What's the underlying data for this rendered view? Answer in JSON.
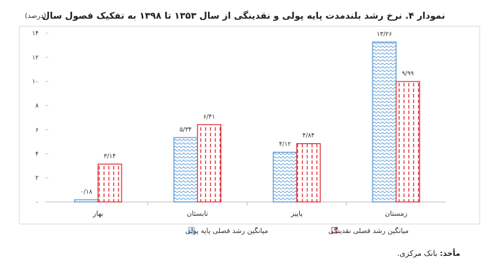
{
  "chart_data": {
    "type": "bar",
    "title": "نمودار ۴. نرخ رشد بلندمدت پایه پولی و نقدینگی از سال ۱۳۵۳ تا ۱۳۹۸ به تفکیک فصول سال",
    "unit_label": "(درصد)",
    "categories": [
      "بهار",
      "تابستان",
      "پاییز",
      "زمستان"
    ],
    "ylim": [
      0,
      14
    ],
    "yticks": [
      0,
      2,
      4,
      6,
      8,
      10,
      12,
      14
    ],
    "ytick_labels": [
      "۰",
      "۲",
      "۴",
      "۶",
      "۸",
      "۱۰",
      "۱۲",
      "۱۴"
    ],
    "legend_position": "bottom-center",
    "series": [
      {
        "name": "میانگین رشد فصلی پایه پولی",
        "values": [
          0.18,
          5.34,
          4.12,
          13.26
        ],
        "labels": [
          "۰/۱۸",
          "۵/۳۴",
          "۴/۱۲",
          "۱۳/۲۶"
        ],
        "color": "#5b9bd5",
        "pattern": "wave"
      },
      {
        "name": "میانگین رشد فصلی نقدینگی",
        "values": [
          3.14,
          6.41,
          4.84,
          9.99
        ],
        "labels": [
          "۳/۱۴",
          "۶/۴۱",
          "۴/۸۴",
          "۹/۹۹"
        ],
        "color": "#e0303a",
        "pattern": "dash"
      }
    ]
  },
  "source": {
    "label": "مأخذ:",
    "text": "بانک مرکزی."
  }
}
